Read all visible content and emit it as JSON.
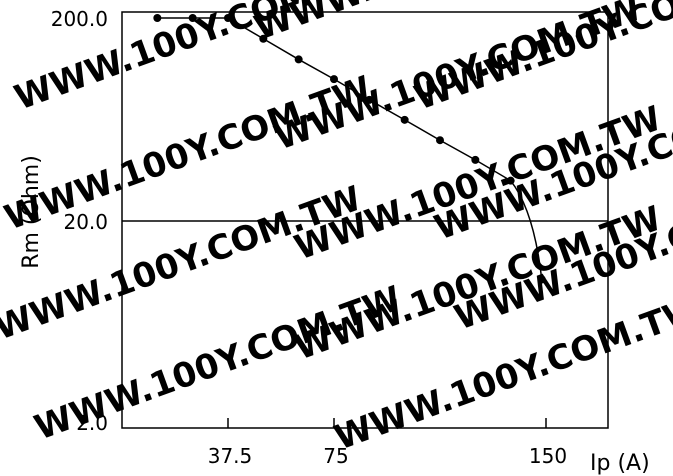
{
  "chart_data": {
    "type": "line",
    "xlabel": "Ip (A)",
    "ylabel": "Rm (Ohm)",
    "x_ticks": [
      "37.5",
      "75",
      "150"
    ],
    "y_ticks": [
      "200.0",
      "20.0",
      "2.0"
    ],
    "xlim": [
      0,
      162
    ],
    "ylim": [
      2.0,
      200.0
    ],
    "y_scale": "log",
    "grid": false,
    "reference_line_y": 20.0,
    "series": [
      {
        "x": [
          12.5,
          25,
          37.5,
          50,
          62.5,
          75,
          87.5,
          100,
          112.5,
          125,
          137.5,
          148.5
        ],
        "y": [
          200,
          200,
          200,
          158,
          125,
          100,
          79,
          63,
          50,
          40,
          31.6,
          10.3
        ],
        "color": "#000000",
        "marker": "circle"
      }
    ]
  },
  "watermark": "WWW.100Y.COM.TW"
}
